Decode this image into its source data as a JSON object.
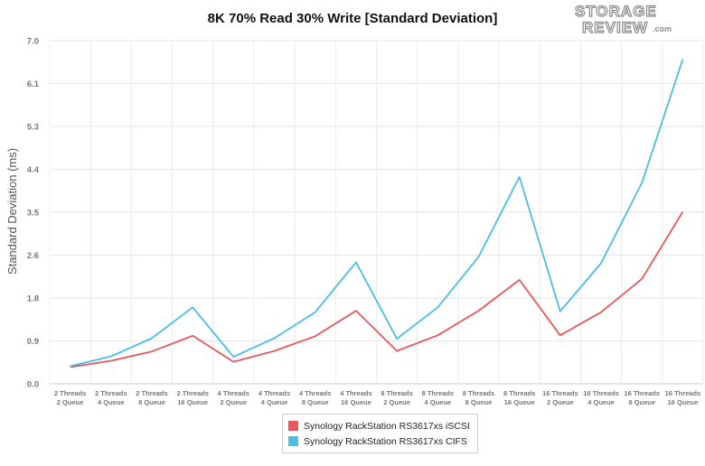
{
  "chart_data": {
    "type": "line",
    "title": "8K 70% Read 30% Write [Standard Deviation]",
    "xlabel": "",
    "ylabel": "Standard Deviation (ms)",
    "ylim": [
      0,
      7.0
    ],
    "yticks": [
      "0.0",
      "0.9",
      "1.8",
      "2.6",
      "3.5",
      "4.4",
      "5.3",
      "6.1",
      "7.0"
    ],
    "categories": [
      [
        "2 Threads",
        "2 Queue"
      ],
      [
        "2 Threads",
        "4 Queue"
      ],
      [
        "2 Threads",
        "8 Queue"
      ],
      [
        "2 Threads",
        "16 Queue"
      ],
      [
        "4 Threads",
        "2 Queue"
      ],
      [
        "4 Threads",
        "4 Queue"
      ],
      [
        "4 Threads",
        "8 Queue"
      ],
      [
        "4 Threads",
        "16 Queue"
      ],
      [
        "8 Threads",
        "2 Queue"
      ],
      [
        "8 Threads",
        "4 Queue"
      ],
      [
        "8 Threads",
        "8 Queue"
      ],
      [
        "8 Threads",
        "16 Queue"
      ],
      [
        "16 Threads",
        "2 Queue"
      ],
      [
        "16 Threads",
        "4 Queue"
      ],
      [
        "16 Threads",
        "8 Queue"
      ],
      [
        "16 Threads",
        "16 Queue"
      ]
    ],
    "series": [
      {
        "name": "Synology RackStation RS3617xs iSCSI",
        "color": "#e8575a",
        "values": [
          0.34,
          0.47,
          0.66,
          0.98,
          0.45,
          0.67,
          0.97,
          1.49,
          0.67,
          0.99,
          1.49,
          2.12,
          0.99,
          1.46,
          2.14,
          3.51
        ]
      },
      {
        "name": "Synology RackStation RS3617xs CIFS",
        "color": "#4bbde6",
        "values": [
          0.36,
          0.56,
          0.93,
          1.56,
          0.55,
          0.93,
          1.46,
          2.48,
          0.92,
          1.56,
          2.59,
          4.22,
          1.48,
          2.46,
          4.1,
          6.62
        ]
      }
    ],
    "grid": true,
    "legend_placement": "bottom-center"
  },
  "logo": {
    "line1": "STORAGE",
    "line2": "REVIEW",
    "suffix": ".com"
  }
}
